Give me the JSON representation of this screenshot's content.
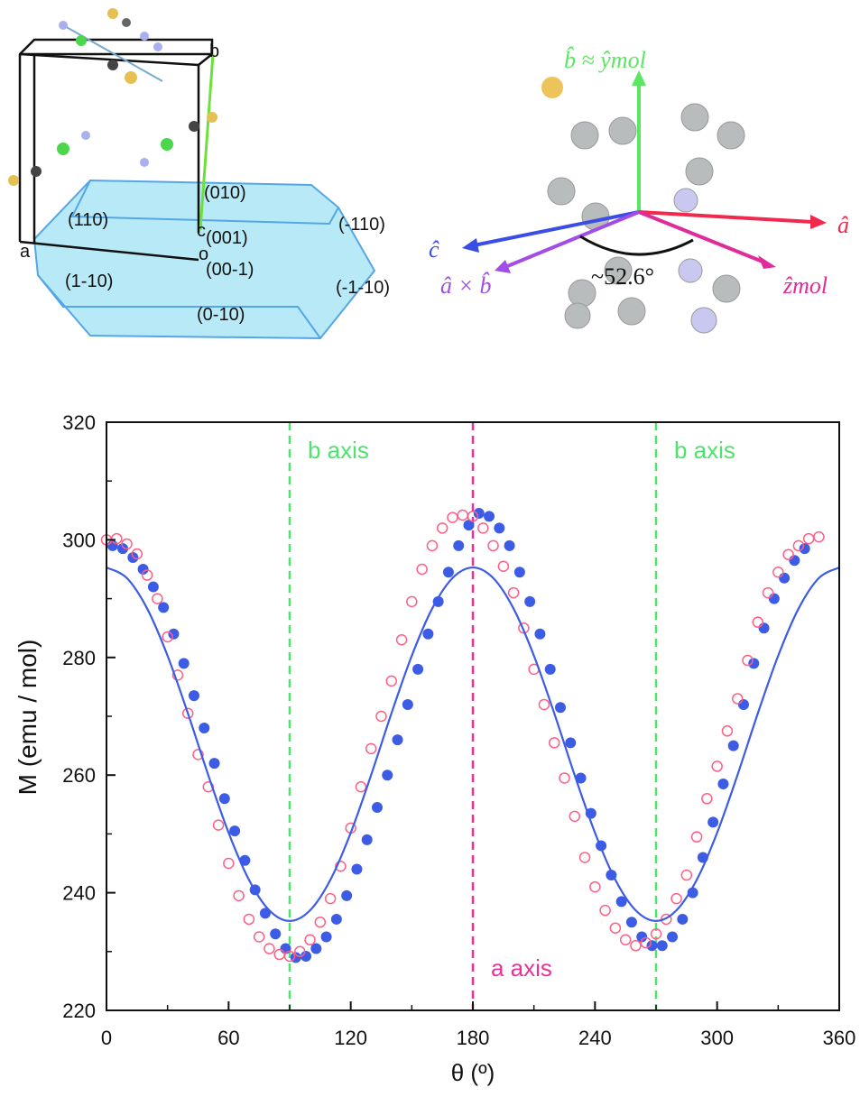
{
  "diagram": {
    "crystal_labels": [
      "b",
      "(010)",
      "(110)",
      "(-110)",
      "c",
      "(001)",
      "o",
      "a",
      "(00-1)",
      "(1-10)",
      "(-1-10)",
      "(0-10)"
    ],
    "axes_labels": {
      "b_hat": "b̂ ≈ ŷmol",
      "a_hat": "â",
      "c_hat": "ĉ",
      "a_cross_b": "â × b̂",
      "angle": "~52.6°",
      "z_mol": "ẑmol"
    }
  },
  "chart_data": {
    "type": "scatter",
    "xlabel": "θ (º)",
    "ylabel": "M (emu / mol)",
    "xlim": [
      0,
      360
    ],
    "xticks": [
      0,
      60,
      120,
      180,
      240,
      300,
      360
    ],
    "ylim": [
      220,
      320
    ],
    "yticks": [
      220,
      240,
      260,
      280,
      300,
      320
    ],
    "vlines": [
      {
        "x": 90,
        "label": "b axis",
        "color": "#4fe36e"
      },
      {
        "x": 180,
        "label": "a axis",
        "color": "#ee2f9b"
      },
      {
        "x": 270,
        "label": "b axis",
        "color": "#4fe36e"
      }
    ],
    "series": [
      {
        "marker": "filled",
        "color": "#3d5ce6",
        "x": [
          3,
          8,
          13,
          18,
          23,
          28,
          33,
          38,
          43,
          48,
          53,
          58,
          63,
          68,
          73,
          78,
          83,
          88,
          93,
          98,
          103,
          108,
          113,
          118,
          123,
          128,
          133,
          138,
          143,
          148,
          153,
          158,
          163,
          168,
          173,
          178,
          183,
          188,
          193,
          198,
          203,
          208,
          213,
          218,
          223,
          228,
          233,
          238,
          243,
          248,
          253,
          258,
          263,
          268,
          273,
          278,
          283,
          288,
          293,
          298,
          303,
          308,
          313,
          318,
          323,
          328,
          333,
          338,
          343
        ],
        "values": [
          299,
          298.5,
          297,
          295,
          292,
          288.5,
          284,
          279,
          273.5,
          268,
          262,
          256,
          250.5,
          245.5,
          240.5,
          236.5,
          233,
          230.5,
          229,
          229.2,
          230.5,
          232.5,
          235.5,
          239.5,
          244,
          249,
          254.5,
          260,
          266,
          272,
          278,
          284,
          289.5,
          294.5,
          299,
          302.5,
          304.5,
          304,
          302,
          299,
          294.5,
          289.5,
          284,
          278,
          271.5,
          265.5,
          259.5,
          253.5,
          248,
          243,
          238.5,
          235,
          232.5,
          231,
          231,
          232.5,
          235.5,
          240,
          246,
          252,
          258.5,
          265,
          272,
          279,
          285,
          290,
          293.5,
          296.5,
          298.5
        ]
      },
      {
        "marker": "open",
        "color": "#ff5f86",
        "x": [
          0,
          5,
          10,
          15,
          20,
          25,
          30,
          35,
          40,
          45,
          50,
          55,
          60,
          65,
          70,
          75,
          80,
          85,
          90,
          95,
          100,
          105,
          110,
          115,
          120,
          125,
          130,
          135,
          140,
          145,
          150,
          155,
          160,
          165,
          170,
          175,
          180,
          185,
          190,
          195,
          200,
          205,
          210,
          215,
          220,
          225,
          230,
          235,
          240,
          245,
          250,
          255,
          260,
          265,
          270,
          275,
          280,
          285,
          290,
          295,
          300,
          305,
          310,
          315,
          320,
          325,
          330,
          335,
          340,
          345,
          350
        ],
        "values": [
          300,
          300.2,
          299.3,
          297.6,
          294,
          290,
          283.5,
          277,
          270.5,
          263.5,
          258,
          251.5,
          245,
          239.5,
          235.5,
          232.5,
          230.5,
          229.5,
          229.2,
          230,
          232,
          235,
          239,
          244.5,
          251,
          258,
          264.5,
          270,
          276,
          283,
          289.5,
          295,
          299,
          302,
          303.8,
          304.2,
          304,
          302,
          299,
          295.5,
          291,
          285,
          278,
          272,
          265.5,
          259.5,
          253,
          246,
          241,
          237,
          234,
          232,
          231,
          231.5,
          233,
          235.5,
          239,
          243,
          249.5,
          256,
          261.5,
          267.5,
          273,
          279.5,
          286,
          291,
          294.5,
          297.5,
          299,
          300.2,
          300.5
        ]
      },
      {
        "marker": "line",
        "color": "#3d5ce6",
        "x": [
          0,
          10,
          20,
          30,
          40,
          50,
          60,
          70,
          80,
          90,
          100,
          110,
          120,
          130,
          140,
          150,
          160,
          170,
          180,
          190,
          200,
          210,
          220,
          230,
          240,
          250,
          260,
          270,
          280,
          290,
          300,
          310,
          320,
          330,
          340,
          350,
          360
        ],
        "values": [
          295.3,
          293.5,
          288.3,
          280.3,
          270.5,
          260,
          250.2,
          242.2,
          237,
          235.2,
          237,
          242.2,
          250.2,
          260,
          270.5,
          280.3,
          288.3,
          293.5,
          295.3,
          293.5,
          288.3,
          280.3,
          270.5,
          260,
          250.2,
          242.2,
          237,
          235.2,
          237,
          242.2,
          250.2,
          260,
          270.5,
          280.3,
          288.3,
          293.5,
          295.3
        ]
      }
    ]
  }
}
